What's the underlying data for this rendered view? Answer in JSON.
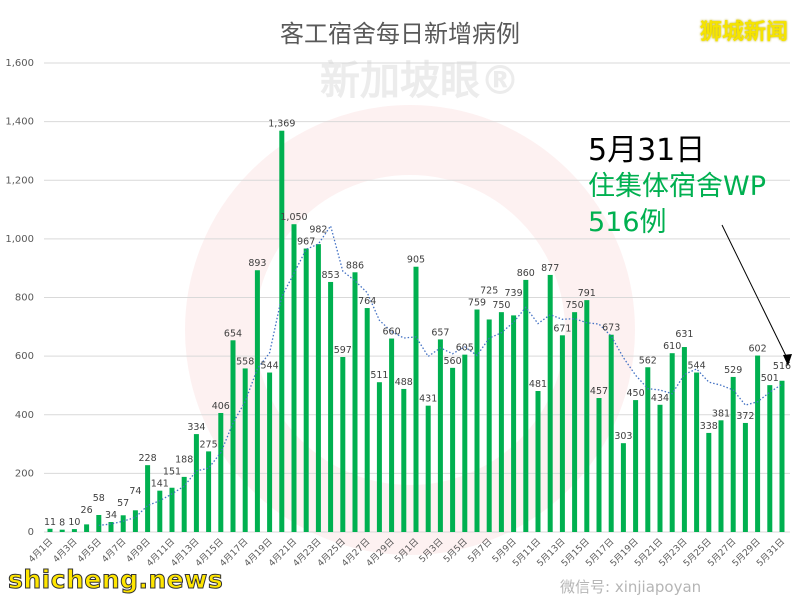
{
  "header": {
    "title": "客工宿舍每日新增病例",
    "brand": "狮城新闻"
  },
  "annotation": {
    "date": "5月31日",
    "line1": "住集体宿舍WP",
    "line2": "516例"
  },
  "watermarks": {
    "site": "shicheng.news",
    "logo": "新加坡眼®",
    "wechat": "微信号: xinjiapoyan"
  },
  "colors": {
    "bar": "#00b050",
    "trend": "#4472c4",
    "accent": "#00b050",
    "brand": "#f5e400"
  },
  "chart_data": {
    "type": "bar",
    "title": "客工宿舍每日新增病例",
    "xlabel": "",
    "ylabel": "",
    "ylim": [
      0,
      1600
    ],
    "yticks": [
      "0",
      "200",
      "400",
      "600",
      "800",
      "1,000",
      "1,200",
      "1,400",
      "1,600"
    ],
    "grid": true,
    "trendline": {
      "type": "moving average",
      "period": 5
    },
    "categories": [
      "4月1日",
      "4月2日",
      "4月3日",
      "4月4日",
      "4月5日",
      "4月6日",
      "4月7日",
      "4月8日",
      "4月9日",
      "4月10日",
      "4月11日",
      "4月12日",
      "4月13日",
      "4月14日",
      "4月15日",
      "4月16日",
      "4月17日",
      "4月18日",
      "4月19日",
      "4月20日",
      "4月21日",
      "4月22日",
      "4月23日",
      "4月24日",
      "4月25日",
      "4月26日",
      "4月27日",
      "4月28日",
      "4月29日",
      "4月30日",
      "5月1日",
      "5月2日",
      "5月3日",
      "5月4日",
      "5月5日",
      "5月6日",
      "5月7日",
      "5月8日",
      "5月9日",
      "5月10日",
      "5月11日",
      "5月12日",
      "5月13日",
      "5月14日",
      "5月15日",
      "5月16日",
      "5月17日",
      "5月18日",
      "5月19日",
      "5月20日",
      "5月21日",
      "5月22日",
      "5月23日",
      "5月24日",
      "5月25日",
      "5月26日",
      "5月27日",
      "5月28日",
      "5月29日",
      "5月30日",
      "5月31日"
    ],
    "values": [
      11,
      8,
      10,
      26,
      58,
      34,
      57,
      74,
      228,
      141,
      151,
      188,
      334,
      275,
      406,
      654,
      558,
      893,
      544,
      1369,
      1050,
      967,
      982,
      853,
      597,
      886,
      764,
      511,
      660,
      488,
      905,
      431,
      657,
      560,
      605,
      759,
      725,
      750,
      739,
      860,
      481,
      877,
      671,
      750,
      791,
      457,
      673,
      303,
      450,
      562,
      434,
      610,
      631,
      544,
      338,
      381,
      529,
      372,
      602,
      501,
      516
    ]
  }
}
